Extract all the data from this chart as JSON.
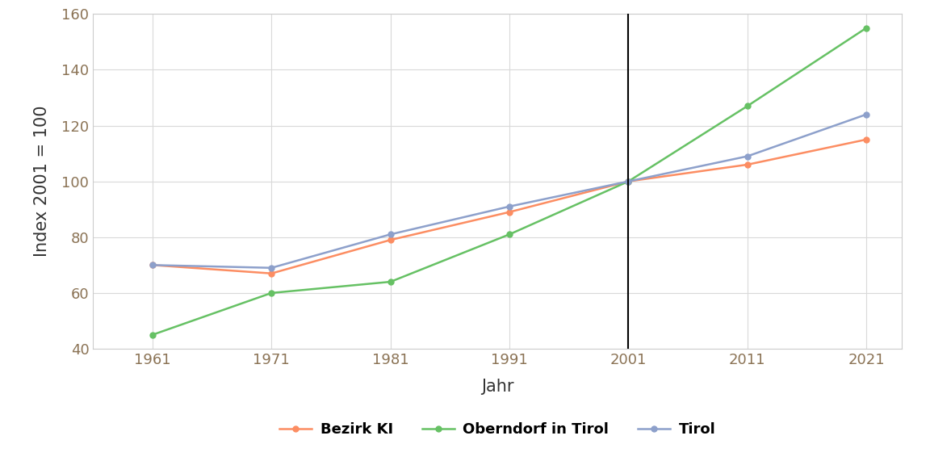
{
  "years": [
    1961,
    1971,
    1981,
    1991,
    2001,
    2011,
    2021
  ],
  "bezirk_kl": [
    70,
    67,
    79,
    89,
    100,
    106,
    115
  ],
  "oberndorf": [
    45,
    60,
    64,
    81,
    100,
    127,
    155
  ],
  "tirol": [
    70,
    69,
    81,
    91,
    100,
    109,
    124
  ],
  "bezirk_kl_color": "#FC8D62",
  "oberndorf_color": "#66C164",
  "tirol_color": "#8DA0CB",
  "vline_x": 2001,
  "xlabel": "Jahr",
  "ylabel": "Index 2001 = 100",
  "ylim": [
    40,
    160
  ],
  "xlim": [
    1956,
    2024
  ],
  "yticks": [
    40,
    60,
    80,
    100,
    120,
    140,
    160
  ],
  "xticks": [
    1961,
    1971,
    1981,
    1991,
    2001,
    2011,
    2021
  ],
  "legend_labels": [
    "Bezirk KI",
    "Oberndorf in Tirol",
    "Tirol"
  ],
  "background_color": "#ffffff",
  "grid_color": "#d9d9d9",
  "tick_label_color": "#8b7355",
  "axis_label_color": "#333333",
  "marker": "o",
  "marker_size": 5,
  "linewidth": 1.8
}
